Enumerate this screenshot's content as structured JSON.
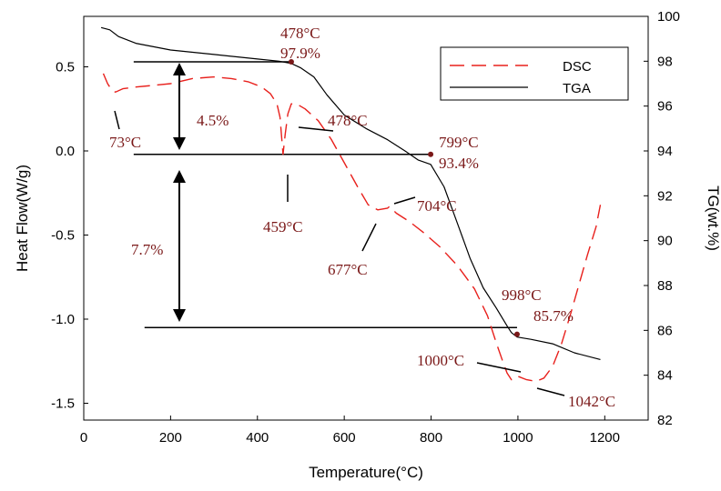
{
  "chart_data": {
    "type": "line",
    "xlabel": "Temperature(°C)",
    "ylabel_left": "Heat Flow(W/g)",
    "ylabel_right": "TG(wt.%)",
    "xlim": [
      0,
      1300
    ],
    "ylim_left": [
      -1.6,
      0.8
    ],
    "ylim_right": [
      82,
      100
    ],
    "x_ticks": [
      "0",
      "200",
      "400",
      "600",
      "800",
      "1000",
      "1200"
    ],
    "y_left_ticks": [
      "0.5",
      "0.0",
      "-0.5",
      "-1.0",
      "-1.5"
    ],
    "y_right_ticks": [
      "82",
      "84",
      "86",
      "88",
      "90",
      "92",
      "94",
      "96",
      "98",
      "100"
    ],
    "legend": {
      "position": "top-right",
      "entries": [
        "DSC",
        "TGA"
      ]
    },
    "series": [
      {
        "name": "DSC",
        "axis": "left",
        "color": "#e8201c",
        "style": "dashed",
        "points": [
          [
            45,
            0.46
          ],
          [
            55,
            0.4
          ],
          [
            65,
            0.36
          ],
          [
            73,
            0.35
          ],
          [
            90,
            0.37
          ],
          [
            120,
            0.38
          ],
          [
            160,
            0.39
          ],
          [
            200,
            0.4
          ],
          [
            250,
            0.43
          ],
          [
            300,
            0.44
          ],
          [
            340,
            0.43
          ],
          [
            380,
            0.41
          ],
          [
            410,
            0.38
          ],
          [
            430,
            0.34
          ],
          [
            445,
            0.28
          ],
          [
            452,
            0.2
          ],
          [
            459,
            -0.02
          ],
          [
            464,
            0.1
          ],
          [
            470,
            0.22
          ],
          [
            478,
            0.28
          ],
          [
            490,
            0.28
          ],
          [
            510,
            0.25
          ],
          [
            540,
            0.18
          ],
          [
            570,
            0.07
          ],
          [
            600,
            -0.07
          ],
          [
            630,
            -0.21
          ],
          [
            655,
            -0.32
          ],
          [
            677,
            -0.35
          ],
          [
            700,
            -0.34
          ],
          [
            704,
            -0.33
          ],
          [
            720,
            -0.37
          ],
          [
            750,
            -0.42
          ],
          [
            780,
            -0.48
          ],
          [
            820,
            -0.57
          ],
          [
            860,
            -0.68
          ],
          [
            900,
            -0.82
          ],
          [
            930,
            -0.98
          ],
          [
            950,
            -1.14
          ],
          [
            965,
            -1.25
          ],
          [
            975,
            -1.32
          ],
          [
            985,
            -1.36
          ],
          [
            1000,
            -1.34
          ],
          [
            1020,
            -1.36
          ],
          [
            1042,
            -1.37
          ],
          [
            1060,
            -1.35
          ],
          [
            1080,
            -1.28
          ],
          [
            1100,
            -1.15
          ],
          [
            1120,
            -0.98
          ],
          [
            1140,
            -0.8
          ],
          [
            1160,
            -0.62
          ],
          [
            1180,
            -0.45
          ],
          [
            1190,
            -0.32
          ]
        ]
      },
      {
        "name": "TGA",
        "axis": "right",
        "color": "#000000",
        "style": "solid",
        "points": [
          [
            40,
            99.5
          ],
          [
            60,
            99.4
          ],
          [
            80,
            99.1
          ],
          [
            120,
            98.8
          ],
          [
            200,
            98.5
          ],
          [
            300,
            98.3
          ],
          [
            400,
            98.1
          ],
          [
            450,
            98.0
          ],
          [
            478,
            97.9
          ],
          [
            500,
            97.7
          ],
          [
            530,
            97.3
          ],
          [
            560,
            96.5
          ],
          [
            600,
            95.6
          ],
          [
            650,
            95.0
          ],
          [
            700,
            94.5
          ],
          [
            740,
            94.0
          ],
          [
            770,
            93.6
          ],
          [
            799,
            93.4
          ],
          [
            830,
            92.4
          ],
          [
            860,
            90.8
          ],
          [
            890,
            89.2
          ],
          [
            920,
            87.9
          ],
          [
            950,
            87.0
          ],
          [
            975,
            86.2
          ],
          [
            985,
            85.9
          ],
          [
            998,
            85.7
          ],
          [
            1030,
            85.6
          ],
          [
            1080,
            85.4
          ],
          [
            1130,
            85.0
          ],
          [
            1190,
            84.7
          ]
        ]
      }
    ],
    "guide_lines": [
      {
        "x": [
          115,
          478
        ],
        "y": 0.53
      },
      {
        "x": [
          115,
          799
        ],
        "y": -0.02
      },
      {
        "x": [
          140,
          998
        ],
        "y": -1.05
      }
    ],
    "markers": [
      {
        "x": 478,
        "y": 0.53
      },
      {
        "x": 799,
        "y": -0.02
      },
      {
        "x": 998,
        "y": -1.09
      }
    ],
    "annotations": [
      {
        "id": "a478top",
        "label": "478°C"
      },
      {
        "id": "a979",
        "label": "97.9%"
      },
      {
        "id": "a45",
        "label": "4.5%"
      },
      {
        "id": "a478dsc",
        "label": "478°C"
      },
      {
        "id": "a73",
        "label": "73°C"
      },
      {
        "id": "a799",
        "label": "799°C"
      },
      {
        "id": "a934",
        "label": "93.4%"
      },
      {
        "id": "a459",
        "label": "459°C"
      },
      {
        "id": "a704",
        "label": "704°C"
      },
      {
        "id": "a77",
        "label": "7.7%"
      },
      {
        "id": "a677",
        "label": "677°C"
      },
      {
        "id": "a998",
        "label": "998°C"
      },
      {
        "id": "a857",
        "label": "85.7%"
      },
      {
        "id": "a1000",
        "label": "1000°C"
      },
      {
        "id": "a1042",
        "label": "1042°C"
      }
    ]
  }
}
